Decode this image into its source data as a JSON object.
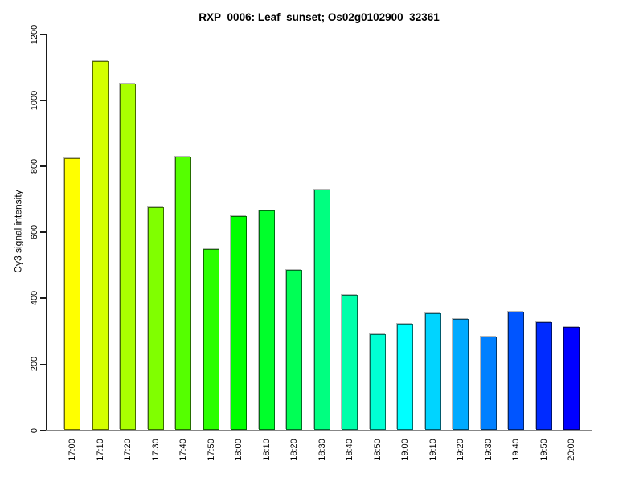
{
  "chart_data": {
    "type": "bar",
    "title": "RXP_0006: Leaf_sunset; Os02g0102900_32361",
    "ylabel": "Cy3 signal intensity",
    "xlabel": "",
    "categories": [
      "17:00",
      "17:10",
      "17:20",
      "17:30",
      "17:40",
      "17:50",
      "18:00",
      "18:10",
      "18:20",
      "18:30",
      "18:40",
      "18:50",
      "19:00",
      "19:10",
      "19:20",
      "19:30",
      "19:40",
      "19:50",
      "20:00"
    ],
    "values": [
      825,
      1120,
      1050,
      675,
      830,
      550,
      650,
      665,
      485,
      730,
      410,
      290,
      322,
      355,
      337,
      283,
      360,
      328,
      312
    ],
    "bar_colors": [
      "#FFFF00",
      "#D4FF00",
      "#AAFF00",
      "#80FF00",
      "#55FF00",
      "#2BFF00",
      "#00FF00",
      "#00FF2B",
      "#00FF55",
      "#00FF80",
      "#00FFAA",
      "#00FFD4",
      "#00FFFF",
      "#00D4FF",
      "#00AAFF",
      "#0080FF",
      "#0055FF",
      "#002BFF",
      "#0000FF"
    ],
    "y_ticks": [
      0,
      200,
      400,
      600,
      800,
      1000,
      1200
    ],
    "ylim": [
      0,
      1200
    ],
    "grid": false,
    "legend_position": "none",
    "axis_color": "#1a1a1a",
    "baseline_color": "#878787",
    "background_color": "#ffffff",
    "text_color": "#000000"
  }
}
